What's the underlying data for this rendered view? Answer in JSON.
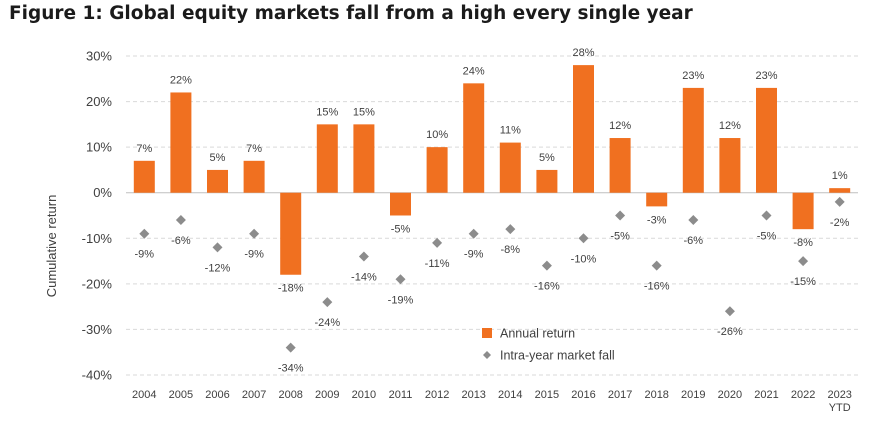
{
  "figure_title": "Figure 1: Global equity markets fall from a high every single year",
  "colors": {
    "annual_return": "#F07020",
    "intra_year_fall": "#8C8C8C",
    "gridline": "#D9D9D9",
    "axis_text": "#404040"
  },
  "chart_data": {
    "type": "bar",
    "title": "",
    "xlabel": "",
    "ylabel": "Cumulative return",
    "ylim": [
      -40,
      30
    ],
    "yticks": [
      30,
      20,
      10,
      0,
      -10,
      -20,
      -30,
      -40
    ],
    "ytick_labels": [
      "30%",
      "20%",
      "10%",
      "0%",
      "-10%",
      "-20%",
      "-30%",
      "-40%"
    ],
    "grid": true,
    "legend_position": "bottom-center",
    "categories": [
      "2004",
      "2005",
      "2006",
      "2007",
      "2008",
      "2009",
      "2010",
      "2011",
      "2012",
      "2013",
      "2014",
      "2015",
      "2016",
      "2017",
      "2018",
      "2019",
      "2020",
      "2021",
      "2022",
      "2023\nYTD"
    ],
    "series": [
      {
        "name": "Annual return",
        "type": "bar",
        "values": [
          7,
          22,
          5,
          7,
          -18,
          15,
          15,
          -5,
          10,
          24,
          11,
          5,
          28,
          12,
          -3,
          23,
          12,
          23,
          -8,
          1
        ],
        "labels": [
          "7%",
          "22%",
          "5%",
          "7%",
          "-18%",
          "15%",
          "15%",
          "-5%",
          "10%",
          "24%",
          "11%",
          "5%",
          "28%",
          "12%",
          "-3%",
          "23%",
          "12%",
          "23%",
          "-8%",
          "1%"
        ]
      },
      {
        "name": "Intra-year market fall",
        "type": "scatter",
        "marker": "diamond",
        "values": [
          -9,
          -6,
          -12,
          -9,
          -34,
          -24,
          -14,
          -19,
          -11,
          -9,
          -8,
          -16,
          -10,
          -5,
          -16,
          -6,
          -26,
          -5,
          -15,
          -2
        ],
        "labels": [
          "-9%",
          "-6%",
          "-12%",
          "-9%",
          "-34%",
          "-24%",
          "-14%",
          "-19%",
          "-11%",
          "-9%",
          "-8%",
          "-16%",
          "-10%",
          "-5%",
          "-16%",
          "-6%",
          "-26%",
          "-5%",
          "-15%",
          "-2%"
        ]
      }
    ]
  }
}
